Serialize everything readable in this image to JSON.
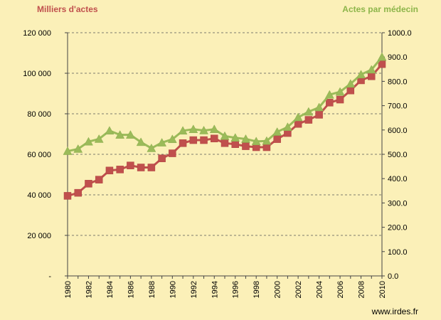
{
  "chart_data": {
    "type": "line",
    "left_axis_title": "Milliers d'actes",
    "right_axis_title": "Actes par médecin",
    "source": "www.irdes.fr",
    "colors": {
      "left_series": "#c0504d",
      "right_series": "#9bbb59",
      "background": "#fbf0b8"
    },
    "x": [
      1980,
      1981,
      1982,
      1983,
      1984,
      1985,
      1986,
      1987,
      1988,
      1989,
      1990,
      1991,
      1992,
      1993,
      1994,
      1995,
      1996,
      1997,
      1998,
      1999,
      2000,
      2001,
      2002,
      2003,
      2004,
      2005,
      2006,
      2007,
      2008,
      2009,
      2010
    ],
    "x_tick_labels": [
      "1980",
      "1982",
      "1984",
      "1986",
      "1988",
      "1990",
      "1992",
      "1994",
      "1996",
      "1998",
      "2000",
      "2002",
      "2004",
      "2006",
      "2008",
      "2010"
    ],
    "y_left": {
      "range": [
        0,
        120000
      ],
      "tick_labels": [
        "-",
        "20 000",
        "40 000",
        "60 000",
        "80 000",
        "100 000",
        "120 000"
      ]
    },
    "y_right": {
      "range": [
        0,
        1000
      ],
      "tick_labels": [
        "0.0",
        "100.0",
        "200.0",
        "300.0",
        "400.0",
        "500.0",
        "600.0",
        "700.0",
        "800.0",
        "900.0",
        "1000.0"
      ]
    },
    "grid": true,
    "series": [
      {
        "axis": "left",
        "marker": "square",
        "values": [
          39500,
          41000,
          45500,
          47500,
          52000,
          52500,
          54500,
          53500,
          53500,
          58000,
          60500,
          65500,
          67000,
          67000,
          67800,
          65500,
          65000,
          64000,
          63500,
          63500,
          67500,
          70500,
          75000,
          77000,
          79500,
          85500,
          87000,
          91500,
          96500,
          98500,
          104500
        ]
      },
      {
        "axis": "right",
        "marker": "triangle",
        "values": [
          513,
          522,
          552,
          563,
          597,
          580,
          580,
          550,
          525,
          548,
          562,
          597,
          603,
          598,
          603,
          575,
          568,
          563,
          553,
          555,
          592,
          612,
          652,
          675,
          693,
          745,
          757,
          790,
          828,
          848,
          900
        ]
      }
    ]
  }
}
